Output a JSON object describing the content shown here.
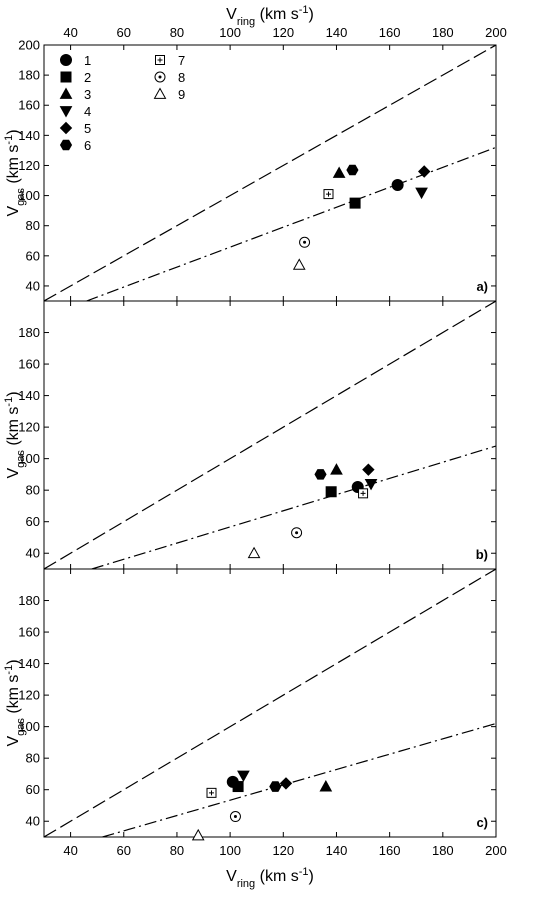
{
  "chart_data": [
    {
      "type": "scatter",
      "x_tick_labels": "top",
      "x_label": [
        "V",
        "ring",
        " (km s",
        "-1",
        ")"
      ],
      "y_label": [
        "V",
        "gas",
        " (km s",
        "-1",
        ")"
      ],
      "annotation": "a)",
      "xlim": [
        30,
        200
      ],
      "xticks": [
        40,
        60,
        80,
        100,
        120,
        140,
        160,
        180,
        200
      ],
      "ylim": [
        30,
        200
      ],
      "yticks": [
        40,
        60,
        80,
        100,
        120,
        140,
        160,
        180,
        200
      ],
      "lines": [
        {
          "style": "dashed",
          "x": [
            30,
            200
          ],
          "values": [
            30,
            200
          ]
        },
        {
          "style": "dashdot",
          "x": [
            46,
            200
          ],
          "values": [
            30,
            132
          ]
        }
      ],
      "series": [
        {
          "name": "1",
          "marker": "circle",
          "color": "#000",
          "x": [
            163
          ],
          "values": [
            107
          ]
        },
        {
          "name": "2",
          "marker": "square",
          "color": "#000",
          "x": [
            147
          ],
          "values": [
            95
          ]
        },
        {
          "name": "3",
          "marker": "triangle-up",
          "color": "#000",
          "x": [
            141
          ],
          "values": [
            115
          ]
        },
        {
          "name": "4",
          "marker": "triangle-down",
          "color": "#000",
          "x": [
            172
          ],
          "values": [
            102
          ]
        },
        {
          "name": "5",
          "marker": "diamond",
          "color": "#000",
          "x": [
            173
          ],
          "values": [
            116
          ]
        },
        {
          "name": "6",
          "marker": "hexagon",
          "color": "#000",
          "x": [
            146
          ],
          "values": [
            117
          ]
        },
        {
          "name": "7",
          "marker": "square-plus",
          "color": "#000",
          "x": [
            137
          ],
          "values": [
            101
          ]
        },
        {
          "name": "8",
          "marker": "circle-dot",
          "color": "#000",
          "x": [
            128
          ],
          "values": [
            69
          ]
        },
        {
          "name": "9",
          "marker": "triangle-open",
          "color": "#000",
          "x": [
            126
          ],
          "values": [
            54
          ]
        }
      ]
    },
    {
      "type": "scatter",
      "y_label": [
        "V",
        "gas",
        " (km s",
        "-1",
        ")"
      ],
      "annotation": "b)",
      "xlim": [
        30,
        200
      ],
      "xticks": [
        40,
        60,
        80,
        100,
        120,
        140,
        160,
        180,
        200
      ],
      "ylim": [
        30,
        200
      ],
      "yticks": [
        40,
        60,
        80,
        100,
        120,
        140,
        160,
        180
      ],
      "lines": [
        {
          "style": "dashed",
          "x": [
            30,
            200
          ],
          "values": [
            30,
            200
          ]
        },
        {
          "style": "dashdot",
          "x": [
            48,
            200
          ],
          "values": [
            30,
            108
          ]
        }
      ],
      "series": [
        {
          "marker": "circle",
          "color": "#000",
          "x": [
            148
          ],
          "values": [
            82
          ]
        },
        {
          "marker": "square",
          "color": "#000",
          "x": [
            138
          ],
          "values": [
            79
          ]
        },
        {
          "marker": "triangle-up",
          "color": "#000",
          "x": [
            140
          ],
          "values": [
            93
          ]
        },
        {
          "marker": "triangle-down",
          "color": "#000",
          "x": [
            153
          ],
          "values": [
            84
          ]
        },
        {
          "marker": "diamond",
          "color": "#000",
          "x": [
            152
          ],
          "values": [
            93
          ]
        },
        {
          "marker": "hexagon",
          "color": "#000",
          "x": [
            134
          ],
          "values": [
            90
          ]
        },
        {
          "marker": "square-plus",
          "color": "#000",
          "x": [
            150
          ],
          "values": [
            78
          ]
        },
        {
          "marker": "circle-dot",
          "color": "#000",
          "x": [
            125
          ],
          "values": [
            53
          ]
        },
        {
          "marker": "triangle-open",
          "color": "#000",
          "x": [
            109
          ],
          "values": [
            40
          ]
        }
      ]
    },
    {
      "type": "scatter",
      "x_tick_labels": "bottom",
      "x_label": [
        "V",
        "ring",
        " (km s",
        "-1",
        ")"
      ],
      "y_label": [
        "V",
        "gas",
        " (km s",
        "-1",
        ")"
      ],
      "annotation": "c)",
      "xlim": [
        30,
        200
      ],
      "xticks": [
        40,
        60,
        80,
        100,
        120,
        140,
        160,
        180,
        200
      ],
      "ylim": [
        30,
        200
      ],
      "yticks": [
        40,
        60,
        80,
        100,
        120,
        140,
        160,
        180
      ],
      "lines": [
        {
          "style": "dashed",
          "x": [
            30,
            200
          ],
          "values": [
            30,
            200
          ]
        },
        {
          "style": "dashdot",
          "x": [
            52,
            200
          ],
          "values": [
            30,
            102
          ]
        }
      ],
      "series": [
        {
          "marker": "circle",
          "color": "#000",
          "x": [
            101
          ],
          "values": [
            65
          ]
        },
        {
          "marker": "square",
          "color": "#000",
          "x": [
            103
          ],
          "values": [
            62
          ]
        },
        {
          "marker": "triangle-up",
          "color": "#000",
          "x": [
            136
          ],
          "values": [
            62
          ]
        },
        {
          "marker": "triangle-down",
          "color": "#000",
          "x": [
            105
          ],
          "values": [
            69
          ]
        },
        {
          "marker": "diamond",
          "color": "#000",
          "x": [
            121
          ],
          "values": [
            64
          ]
        },
        {
          "marker": "hexagon",
          "color": "#000",
          "x": [
            117
          ],
          "values": [
            62
          ]
        },
        {
          "marker": "square-plus",
          "color": "#000",
          "x": [
            93
          ],
          "values": [
            58
          ]
        },
        {
          "marker": "circle-dot",
          "color": "#000",
          "x": [
            102
          ],
          "values": [
            43
          ]
        },
        {
          "marker": "triangle-open",
          "color": "#000",
          "x": [
            88
          ],
          "values": [
            31
          ]
        }
      ]
    }
  ]
}
